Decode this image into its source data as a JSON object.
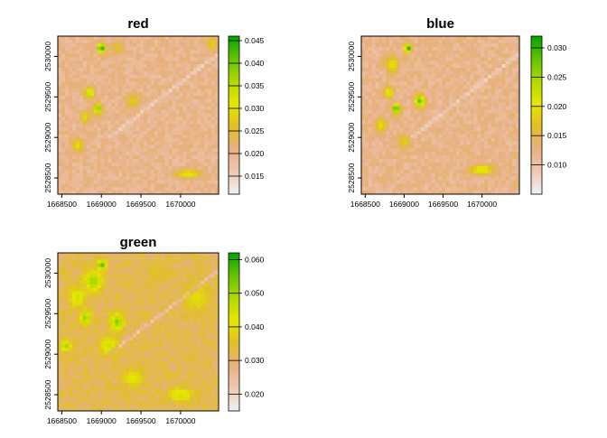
{
  "chart_data": [
    {
      "type": "heatmap",
      "title": "red",
      "xlabel": "",
      "ylabel": "",
      "x_ticks": [
        "1668500",
        "1669000",
        "1669500",
        "1670000"
      ],
      "y_ticks": [
        "2528500",
        "2529000",
        "2529500",
        "2530000"
      ],
      "xlim": [
        1668450,
        1670480
      ],
      "ylim": [
        2528300,
        2530250
      ],
      "legend_ticks": [
        "0.015",
        "0.020",
        "0.025",
        "0.030",
        "0.035",
        "0.040",
        "0.045"
      ],
      "legend_values": [
        0.015,
        0.02,
        0.025,
        0.03,
        0.035,
        0.04,
        0.045
      ],
      "value_range": [
        0.011,
        0.046
      ],
      "base_value": 0.02,
      "hotspots": [
        {
          "x": 1669000,
          "y": 2530100,
          "value": 0.045,
          "sx": 35,
          "sy": 45
        },
        {
          "x": 1668850,
          "y": 2529550,
          "value": 0.035,
          "sx": 40,
          "sy": 50
        },
        {
          "x": 1668950,
          "y": 2529350,
          "value": 0.04,
          "sx": 35,
          "sy": 45
        },
        {
          "x": 1668800,
          "y": 2529250,
          "value": 0.03,
          "sx": 40,
          "sy": 50
        },
        {
          "x": 1668700,
          "y": 2528900,
          "value": 0.03,
          "sx": 50,
          "sy": 60
        },
        {
          "x": 1669400,
          "y": 2529450,
          "value": 0.028,
          "sx": 60,
          "sy": 60
        },
        {
          "x": 1670100,
          "y": 2528550,
          "value": 0.032,
          "sx": 110,
          "sy": 35
        },
        {
          "x": 1669200,
          "y": 2530100,
          "value": 0.026,
          "sx": 60,
          "sy": 60
        },
        {
          "x": 1670400,
          "y": 2530150,
          "value": 0.028,
          "sx": 50,
          "sy": 60
        }
      ]
    },
    {
      "type": "heatmap",
      "title": "blue",
      "xlabel": "",
      "ylabel": "",
      "x_ticks": [
        "1668500",
        "1669000",
        "1669500",
        "1670000"
      ],
      "y_ticks": [
        "2528500",
        "2529000",
        "2529500",
        "2530000"
      ],
      "xlim": [
        1668450,
        1670480
      ],
      "ylim": [
        2528300,
        2530250
      ],
      "legend_ticks": [
        "0.010",
        "0.015",
        "0.020",
        "0.025",
        "0.030"
      ],
      "legend_values": [
        0.01,
        0.015,
        0.02,
        0.025,
        0.03
      ],
      "value_range": [
        0.005,
        0.032
      ],
      "base_value": 0.012,
      "hotspots": [
        {
          "x": 1669050,
          "y": 2530100,
          "value": 0.031,
          "sx": 30,
          "sy": 40
        },
        {
          "x": 1668850,
          "y": 2529900,
          "value": 0.02,
          "sx": 60,
          "sy": 70
        },
        {
          "x": 1668800,
          "y": 2529550,
          "value": 0.022,
          "sx": 40,
          "sy": 50
        },
        {
          "x": 1669200,
          "y": 2529450,
          "value": 0.028,
          "sx": 45,
          "sy": 55
        },
        {
          "x": 1668900,
          "y": 2529350,
          "value": 0.03,
          "sx": 35,
          "sy": 45
        },
        {
          "x": 1668700,
          "y": 2529150,
          "value": 0.02,
          "sx": 50,
          "sy": 60
        },
        {
          "x": 1669000,
          "y": 2528950,
          "value": 0.018,
          "sx": 60,
          "sy": 60
        },
        {
          "x": 1670000,
          "y": 2528600,
          "value": 0.022,
          "sx": 110,
          "sy": 40
        }
      ]
    },
    {
      "type": "heatmap",
      "title": "green",
      "xlabel": "",
      "ylabel": "",
      "x_ticks": [
        "1668500",
        "1669000",
        "1669500",
        "1670000"
      ],
      "y_ticks": [
        "2528500",
        "2529000",
        "2529500",
        "2530000"
      ],
      "xlim": [
        1668450,
        1670480
      ],
      "ylim": [
        2528300,
        2530250
      ],
      "legend_ticks": [
        "0.020",
        "0.030",
        "0.040",
        "0.050",
        "0.060"
      ],
      "legend_values": [
        0.02,
        0.03,
        0.04,
        0.05,
        0.06
      ],
      "value_range": [
        0.015,
        0.062
      ],
      "base_value": 0.032,
      "hotspots": [
        {
          "x": 1669000,
          "y": 2530100,
          "value": 0.058,
          "sx": 35,
          "sy": 40
        },
        {
          "x": 1668900,
          "y": 2529900,
          "value": 0.05,
          "sx": 80,
          "sy": 90
        },
        {
          "x": 1668700,
          "y": 2529700,
          "value": 0.045,
          "sx": 70,
          "sy": 80
        },
        {
          "x": 1668800,
          "y": 2529450,
          "value": 0.05,
          "sx": 50,
          "sy": 60
        },
        {
          "x": 1669200,
          "y": 2529400,
          "value": 0.052,
          "sx": 60,
          "sy": 70
        },
        {
          "x": 1669100,
          "y": 2529100,
          "value": 0.045,
          "sx": 80,
          "sy": 80
        },
        {
          "x": 1668550,
          "y": 2529100,
          "value": 0.05,
          "sx": 40,
          "sy": 50
        },
        {
          "x": 1669400,
          "y": 2528700,
          "value": 0.042,
          "sx": 90,
          "sy": 80
        },
        {
          "x": 1670000,
          "y": 2528500,
          "value": 0.044,
          "sx": 110,
          "sy": 60
        },
        {
          "x": 1670200,
          "y": 2529700,
          "value": 0.04,
          "sx": 120,
          "sy": 120
        },
        {
          "x": 1669700,
          "y": 2530000,
          "value": 0.036,
          "sx": 80,
          "sy": 80
        }
      ]
    }
  ],
  "colors": {
    "ramp": [
      "#f2f2f2",
      "#eec9b3",
      "#e8b083",
      "#e0c027",
      "#e6e600",
      "#b2d800",
      "#63c300",
      "#00a600"
    ],
    "road": "#efe6e0",
    "axis": "#000000"
  }
}
